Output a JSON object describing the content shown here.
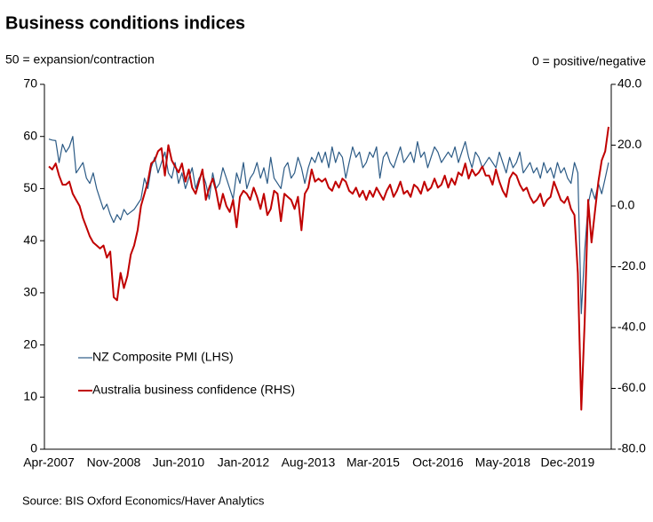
{
  "chart_data": {
    "type": "line",
    "title": "Business conditions indices",
    "y_label": "50 = expansion/contraction",
    "y2_label": "0 = positive/negative",
    "source": "Source: BIS Oxford Economics/Haver Analytics",
    "legend": "lower left",
    "categories": [
      "Apr-2007",
      null,
      null,
      null,
      null,
      null,
      null,
      null,
      null,
      null,
      null,
      null,
      null,
      null,
      null,
      null,
      null,
      null,
      null,
      "Nov-2008",
      null,
      null,
      null,
      null,
      null,
      null,
      null,
      null,
      null,
      null,
      null,
      null,
      null,
      null,
      null,
      null,
      null,
      null,
      "Jun-2010",
      null,
      null,
      null,
      null,
      null,
      null,
      null,
      null,
      null,
      null,
      null,
      null,
      null,
      null,
      null,
      null,
      null,
      null,
      "Jan-2012",
      null,
      null,
      null,
      null,
      null,
      null,
      null,
      null,
      null,
      null,
      null,
      null,
      null,
      null,
      null,
      null,
      null,
      null,
      "Aug-2013",
      null,
      null,
      null,
      null,
      null,
      null,
      null,
      null,
      null,
      null,
      null,
      null,
      null,
      null,
      null,
      null,
      null,
      null,
      "Mar-2015",
      null,
      null,
      null,
      null,
      null,
      null,
      null,
      null,
      null,
      null,
      null,
      null,
      null,
      null,
      null,
      null,
      null,
      null,
      "Oct-2016",
      null,
      null,
      null,
      null,
      null,
      null,
      null,
      null,
      null,
      null,
      null,
      null,
      null,
      null,
      null,
      null,
      null,
      null,
      "May-2018",
      null,
      null,
      null,
      null,
      null,
      null,
      null,
      null,
      null,
      null,
      null,
      null,
      null,
      null,
      null,
      null,
      null,
      null,
      "Dec-2019",
      null,
      null,
      null,
      null,
      null,
      null,
      null,
      null,
      null,
      null,
      null,
      null
    ],
    "series": [
      {
        "name": "NZ Composite PMI (LHS)",
        "color": "#2b5a85",
        "axis": "y",
        "values": [
          59.5,
          59.3,
          59.2,
          55,
          58.5,
          57,
          58,
          60,
          53,
          54,
          55,
          52,
          51,
          53,
          50,
          48,
          46,
          47,
          45,
          43.5,
          45,
          44,
          46,
          45,
          45.5,
          46,
          47,
          48,
          52,
          50,
          54,
          56,
          53,
          55,
          57,
          53,
          52,
          55,
          51,
          53,
          50,
          52,
          54,
          50,
          52,
          53,
          51,
          48,
          53,
          50,
          51,
          54,
          52,
          50,
          48,
          53,
          51,
          55,
          50,
          52,
          53,
          55,
          52,
          54,
          51,
          56,
          52,
          51,
          50,
          54,
          55,
          52,
          53,
          56,
          54,
          51,
          54,
          56,
          55,
          57,
          55,
          57,
          54,
          58,
          55,
          57,
          56,
          52,
          55,
          58,
          56,
          57,
          54,
          55,
          57,
          56,
          58,
          52,
          56,
          57,
          55,
          54,
          56,
          58,
          55,
          56,
          57,
          55,
          59,
          56,
          57,
          54,
          56,
          58,
          57,
          55,
          56,
          57,
          56,
          58,
          55,
          57,
          59,
          56,
          54,
          57,
          56,
          54,
          55,
          56,
          55,
          54,
          57,
          55,
          53,
          56,
          54,
          55,
          57,
          53,
          54,
          55,
          53,
          54,
          52,
          55,
          53,
          54,
          52,
          55,
          53,
          54,
          52,
          51,
          55,
          53,
          26,
          38,
          47,
          50,
          48,
          51,
          49,
          52,
          55
        ]
      },
      {
        "name": "Australia business confidence (RHS)",
        "color": "#c00000",
        "axis": "y2",
        "values": [
          13,
          12,
          14,
          10,
          7,
          7,
          8,
          4,
          2,
          0,
          -4,
          -7,
          -10,
          -12,
          -13,
          -14,
          -13,
          -17,
          -15,
          -30,
          -31,
          -22,
          -27,
          -23,
          -16,
          -13,
          -8,
          0,
          4,
          8,
          14,
          15,
          18,
          19,
          10,
          20,
          15,
          13,
          11,
          14,
          8,
          12,
          6,
          4,
          8,
          12,
          2,
          6,
          9,
          5,
          -1,
          4,
          0,
          -2,
          2,
          -7,
          3,
          5,
          4,
          2,
          6,
          3,
          -1,
          4,
          -3,
          -1,
          5,
          4,
          -5,
          4,
          3,
          2,
          -1,
          3,
          -8,
          4,
          6,
          12,
          8,
          9,
          8,
          9,
          6,
          5,
          8,
          6,
          9,
          8,
          5,
          4,
          6,
          3,
          5,
          2,
          5,
          3,
          6,
          4,
          2,
          5,
          7,
          3,
          5,
          8,
          4,
          5,
          3,
          7,
          6,
          4,
          8,
          5,
          6,
          9,
          6,
          7,
          10,
          6,
          9,
          7,
          11,
          10,
          14,
          9,
          12,
          10,
          11,
          13,
          10,
          10,
          7,
          12,
          8,
          5,
          3,
          9,
          11,
          10,
          7,
          5,
          6,
          3,
          1,
          2,
          4,
          0,
          2,
          3,
          8,
          5,
          2,
          1,
          3,
          -1,
          -3,
          -22,
          -67,
          -38,
          2,
          -12,
          -2,
          8,
          15,
          18,
          26
        ]
      }
    ],
    "ylim": [
      0,
      70
    ],
    "yticks": [
      0,
      10,
      20,
      30,
      40,
      50,
      60,
      70
    ],
    "y2lim": [
      -80,
      40
    ],
    "y2ticks": [
      {
        "value": -80,
        "label": "-80.0"
      },
      {
        "value": -60,
        "label": "-60.0"
      },
      {
        "value": -40,
        "label": "-40.0"
      },
      {
        "value": -20,
        "label": "-20.0"
      },
      {
        "value": 0,
        "label": "0.0"
      },
      {
        "value": 20,
        "label": "20.0"
      },
      {
        "value": 40,
        "label": "40.0"
      }
    ]
  }
}
